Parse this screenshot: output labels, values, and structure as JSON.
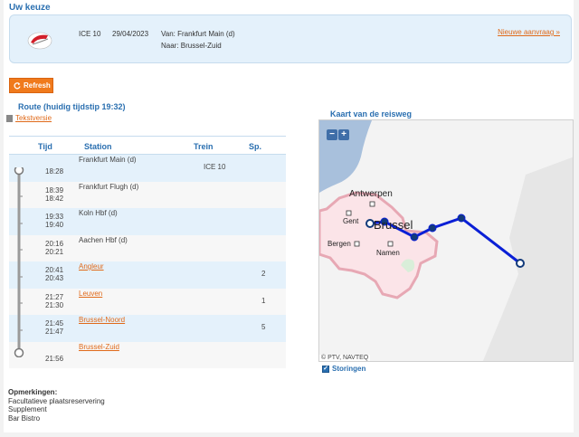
{
  "choice": {
    "title": "Uw keuze",
    "train": "ICE 10",
    "date": "29/04/2023",
    "from_label": "Van: Frankfurt Main (d)",
    "to_label": "Naar: Brussel-Zuid",
    "new_request": "Nieuwe aanvraag »"
  },
  "refresh_label": "Refresh",
  "route": {
    "title": "Route (huidig tijdstip 19:32)",
    "text_version": "Tekstversie",
    "headers": {
      "time": "Tijd",
      "station": "Station",
      "train": "Trein",
      "platform": "Sp."
    },
    "stops": [
      {
        "arr": "",
        "dep": "18:28",
        "station": "Frankfurt Main (d)",
        "link": false,
        "train": "ICE 10",
        "platform": ""
      },
      {
        "arr": "18:39",
        "dep": "18:42",
        "station": "Frankfurt Flugh (d)",
        "link": false,
        "train": "",
        "platform": ""
      },
      {
        "arr": "19:33",
        "dep": "19:40",
        "station": "Koln Hbf (d)",
        "link": false,
        "train": "",
        "platform": ""
      },
      {
        "arr": "20:16",
        "dep": "20:21",
        "station": "Aachen Hbf (d)",
        "link": false,
        "train": "",
        "platform": ""
      },
      {
        "arr": "20:41",
        "dep": "20:43",
        "station": "Angleur",
        "link": true,
        "train": "",
        "platform": "2"
      },
      {
        "arr": "21:27",
        "dep": "21:30",
        "station": "Leuven",
        "link": true,
        "train": "",
        "platform": "1"
      },
      {
        "arr": "21:45",
        "dep": "21:47",
        "station": "Brussel-Noord",
        "link": true,
        "train": "",
        "platform": "5"
      },
      {
        "arr": "",
        "dep": "21:56",
        "station": "Brussel-Zuid",
        "link": true,
        "train": "",
        "platform": ""
      }
    ]
  },
  "map": {
    "title": "Kaart van de reisweg",
    "attribution": "© PTV, NAVTEQ",
    "zoom_out": "−",
    "zoom_in": "+",
    "labels": {
      "antwerpen": "Antwerpen",
      "gent": "Gent",
      "brussel": "Brussel",
      "bergen": "Bergen",
      "namen": "Namen"
    },
    "route_color": "#0a1fd6",
    "storingen": "Storingen"
  },
  "remarks": {
    "heading": "Opmerkingen:",
    "items": [
      "Facultatieve plaatsreservering",
      "Supplement",
      "Bar Bistro"
    ]
  }
}
